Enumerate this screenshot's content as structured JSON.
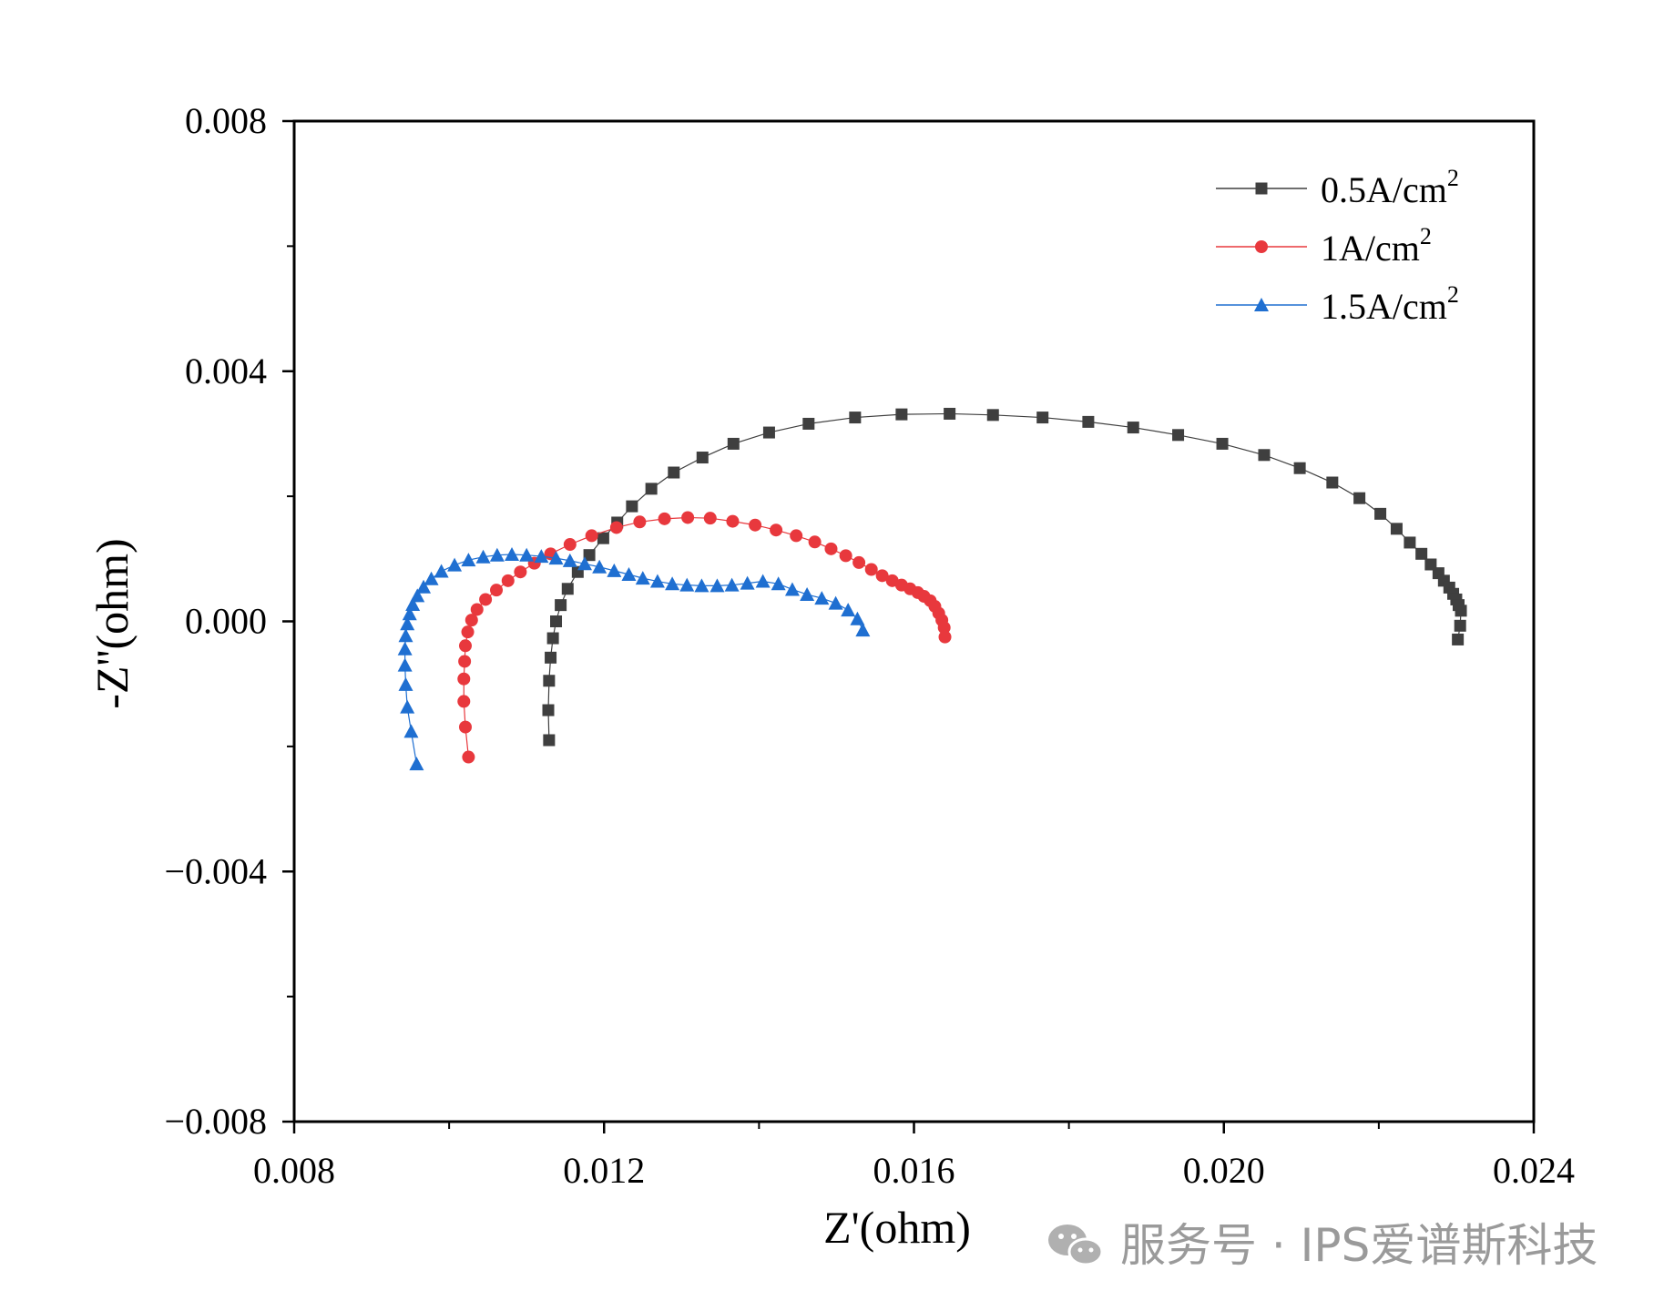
{
  "chart_data": {
    "type": "scatter",
    "title": "",
    "xlabel": "Z'(ohm)",
    "ylabel": "-Z''(ohm)",
    "xlim": [
      0.008,
      0.024
    ],
    "ylim": [
      -0.008,
      0.008
    ],
    "xticks": [
      0.008,
      0.012,
      0.016,
      0.02,
      0.024
    ],
    "xtick_labels": [
      "0.008",
      "0.012",
      "0.016",
      "0.020",
      "0.024"
    ],
    "yticks": [
      0.008,
      0.004,
      0.0,
      -0.004,
      -0.008
    ],
    "ytick_labels": [
      "0.008",
      "0.004",
      "0.000",
      "−0.004",
      "−0.008"
    ],
    "grid": false,
    "legend_position": "top-right",
    "series": [
      {
        "name": "0.5A/cm",
        "name_sup": "2",
        "color": "#3f3f3f",
        "marker": "square",
        "x": [
          0.01129,
          0.01128,
          0.01129,
          0.01131,
          0.01134,
          0.01138,
          0.01144,
          0.01153,
          0.01166,
          0.01181,
          0.01199,
          0.01217,
          0.01236,
          0.01261,
          0.0129,
          0.01327,
          0.01367,
          0.01413,
          0.01464,
          0.01524,
          0.01584,
          0.01646,
          0.01702,
          0.01766,
          0.01825,
          0.01883,
          0.01941,
          0.01998,
          0.02052,
          0.02098,
          0.0214,
          0.02175,
          0.02202,
          0.02223,
          0.0224,
          0.02255,
          0.02267,
          0.02277,
          0.02284,
          0.02291,
          0.02296,
          0.023,
          0.02303,
          0.02306,
          0.02305,
          0.02302
        ],
        "y": [
          -0.0019,
          -0.00142,
          -0.00095,
          -0.00058,
          -0.00027,
          0.0,
          0.00026,
          0.00052,
          0.00079,
          0.00106,
          0.00133,
          0.00158,
          0.00184,
          0.00212,
          0.00238,
          0.00262,
          0.00284,
          0.00302,
          0.00316,
          0.00326,
          0.00331,
          0.00332,
          0.0033,
          0.00326,
          0.00319,
          0.0031,
          0.00298,
          0.00284,
          0.00266,
          0.00245,
          0.00222,
          0.00197,
          0.00172,
          0.00148,
          0.00126,
          0.00108,
          0.00091,
          0.00077,
          0.00065,
          0.00054,
          0.00044,
          0.00035,
          0.00026,
          0.00017,
          -7e-05,
          -0.00029
        ]
      },
      {
        "name": "1A/cm",
        "name_sup": "2",
        "color": "#e8383d",
        "marker": "circle",
        "x": [
          0.01025,
          0.01021,
          0.01019,
          0.01019,
          0.0102,
          0.01021,
          0.01024,
          0.01029,
          0.01036,
          0.01047,
          0.01061,
          0.01076,
          0.01092,
          0.0111,
          0.01131,
          0.01156,
          0.01184,
          0.01216,
          0.01246,
          0.01278,
          0.01308,
          0.01337,
          0.01366,
          0.01395,
          0.01422,
          0.01448,
          0.01472,
          0.01493,
          0.01512,
          0.01529,
          0.01545,
          0.01559,
          0.01572,
          0.01584,
          0.01595,
          0.01605,
          0.01613,
          0.01621,
          0.01627,
          0.01632,
          0.01636,
          0.01639,
          0.0164
        ],
        "y": [
          -0.00217,
          -0.00169,
          -0.00128,
          -0.00092,
          -0.00064,
          -0.00039,
          -0.00017,
          2e-05,
          0.00019,
          0.00035,
          0.0005,
          0.00065,
          0.00079,
          0.00093,
          0.00108,
          0.00123,
          0.00137,
          0.0015,
          0.00159,
          0.00164,
          0.00166,
          0.00165,
          0.0016,
          0.00154,
          0.00146,
          0.00137,
          0.00127,
          0.00116,
          0.00105,
          0.00094,
          0.00083,
          0.00073,
          0.00065,
          0.00058,
          0.00052,
          0.00046,
          0.0004,
          0.00033,
          0.00024,
          0.00013,
          2e-05,
          -0.0001,
          -0.00025
        ]
      },
      {
        "name": "1.5A/cm",
        "name_sup": "2",
        "color": "#1f6fd1",
        "marker": "triangle",
        "x": [
          0.00958,
          0.00951,
          0.00946,
          0.00944,
          0.00943,
          0.00943,
          0.00944,
          0.00946,
          0.00949,
          0.00953,
          0.00959,
          0.00967,
          0.00977,
          0.0099,
          0.01007,
          0.01025,
          0.01044,
          0.01062,
          0.01081,
          0.011,
          0.01119,
          0.01138,
          0.01156,
          0.01175,
          0.01194,
          0.01213,
          0.01232,
          0.0125,
          0.01269,
          0.01288,
          0.01307,
          0.01326,
          0.01346,
          0.01365,
          0.01385,
          0.01405,
          0.01425,
          0.01443,
          0.01462,
          0.01481,
          0.01499,
          0.01515,
          0.01527,
          0.01534
        ],
        "y": [
          -0.00228,
          -0.00176,
          -0.00137,
          -0.00101,
          -0.0007,
          -0.00044,
          -0.00023,
          -4e-05,
          0.00012,
          0.00027,
          0.00041,
          0.00055,
          0.00068,
          0.0008,
          0.0009,
          0.00098,
          0.00103,
          0.00106,
          0.00107,
          0.00106,
          0.00104,
          0.00101,
          0.00097,
          0.00092,
          0.00087,
          0.00081,
          0.00075,
          0.00069,
          0.00064,
          0.0006,
          0.00058,
          0.00057,
          0.00057,
          0.00058,
          0.00061,
          0.00064,
          0.0006,
          0.00051,
          0.00043,
          0.00037,
          0.00029,
          0.00018,
          4e-05,
          -0.00014
        ]
      }
    ]
  },
  "watermark": {
    "text": "服务号 · IPS爱谱斯科技",
    "icon": "wechat-icon"
  }
}
